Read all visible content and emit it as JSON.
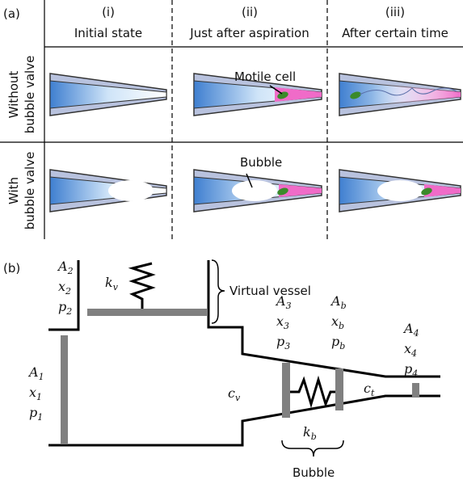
{
  "panel_a": {
    "label": "(a)",
    "columns": [
      {
        "numeral": "(i)",
        "title": "Initial state"
      },
      {
        "numeral": "(ii)",
        "title": "Just after aspiration"
      },
      {
        "numeral": "(iii)",
        "title": "After certain time"
      }
    ],
    "rows": [
      {
        "line1": "Without",
        "line2": "bubble valve"
      },
      {
        "line1": "With",
        "line2": "bubble valve"
      }
    ],
    "annotations": {
      "motile_cell": "Motile cell",
      "bubble": "Bubble"
    }
  },
  "panel_b": {
    "label": "(b)",
    "virtual_vessel": "Virtual vessel",
    "bubble": "Bubble",
    "groups": [
      [
        {
          "base": "A",
          "sub": "2"
        },
        {
          "base": "x",
          "sub": "2"
        },
        {
          "base": "p",
          "sub": "2"
        }
      ],
      [
        {
          "base": "A",
          "sub": "1"
        },
        {
          "base": "x",
          "sub": "1"
        },
        {
          "base": "p",
          "sub": "1"
        }
      ],
      [
        {
          "base": "A",
          "sub": "3"
        },
        {
          "base": "x",
          "sub": "3"
        },
        {
          "base": "p",
          "sub": "3"
        }
      ],
      [
        {
          "base": "A",
          "sub": "b"
        },
        {
          "base": "x",
          "sub": "b"
        },
        {
          "base": "p",
          "sub": "b"
        }
      ],
      [
        {
          "base": "A",
          "sub": "4"
        },
        {
          "base": "x",
          "sub": "4"
        },
        {
          "base": "p",
          "sub": "4"
        }
      ]
    ],
    "constants": [
      {
        "base": "k",
        "sub": "v"
      },
      {
        "base": "c",
        "sub": "v"
      },
      {
        "base": "c",
        "sub": "t"
      },
      {
        "base": "k",
        "sub": "b"
      }
    ]
  }
}
